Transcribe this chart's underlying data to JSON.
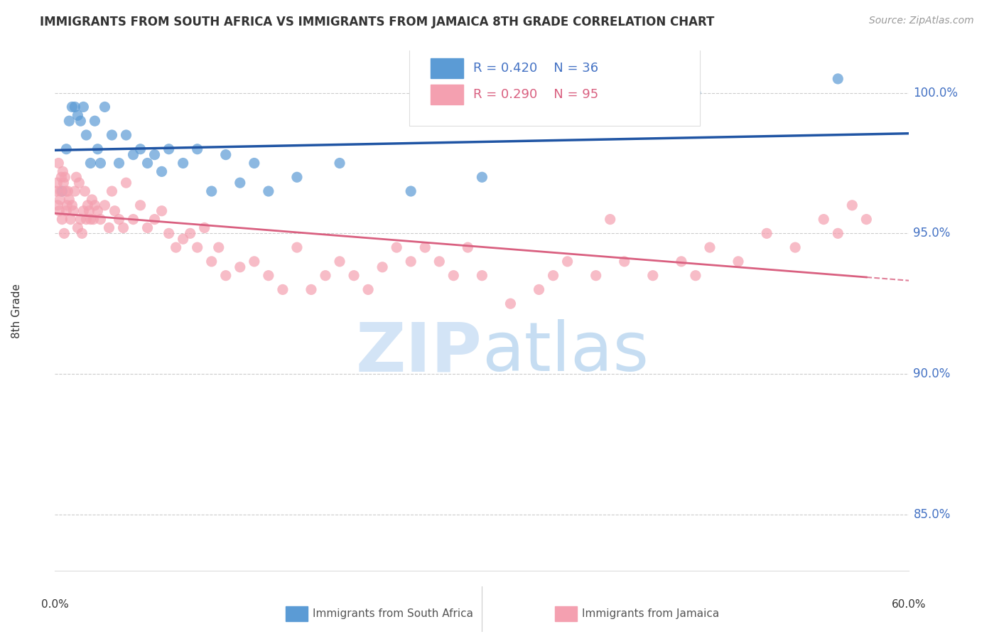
{
  "title": "IMMIGRANTS FROM SOUTH AFRICA VS IMMIGRANTS FROM JAMAICA 8TH GRADE CORRELATION CHART",
  "source": "Source: ZipAtlas.com",
  "ylabel": "8th Grade",
  "y_ticks": [
    85.0,
    90.0,
    95.0,
    100.0
  ],
  "x_range": [
    0.0,
    60.0
  ],
  "y_range": [
    83.0,
    101.5
  ],
  "legend_blue_r": "R = 0.420",
  "legend_blue_n": "N = 36",
  "legend_pink_r": "R = 0.290",
  "legend_pink_n": "N = 95",
  "blue_color": "#5b9bd5",
  "pink_color": "#f4a0b0",
  "blue_line_color": "#2055a4",
  "pink_line_color": "#d96080",
  "background_color": "#ffffff",
  "blue_scatter_x": [
    0.5,
    0.8,
    1.0,
    1.2,
    1.4,
    1.6,
    1.8,
    2.0,
    2.2,
    2.5,
    2.8,
    3.0,
    3.2,
    3.5,
    4.0,
    4.5,
    5.0,
    5.5,
    6.0,
    6.5,
    7.0,
    7.5,
    8.0,
    9.0,
    10.0,
    11.0,
    12.0,
    13.0,
    14.0,
    15.0,
    17.0,
    20.0,
    25.0,
    30.0,
    45.0,
    55.0
  ],
  "blue_scatter_y": [
    96.5,
    98.0,
    99.0,
    99.5,
    99.5,
    99.2,
    99.0,
    99.5,
    98.5,
    97.5,
    99.0,
    98.0,
    97.5,
    99.5,
    98.5,
    97.5,
    98.5,
    97.8,
    98.0,
    97.5,
    97.8,
    97.2,
    98.0,
    97.5,
    98.0,
    96.5,
    97.8,
    96.8,
    97.5,
    96.5,
    97.0,
    97.5,
    96.5,
    97.0,
    100.0,
    100.5
  ],
  "pink_scatter_x": [
    0.1,
    0.15,
    0.2,
    0.25,
    0.3,
    0.35,
    0.4,
    0.45,
    0.5,
    0.55,
    0.6,
    0.65,
    0.7,
    0.75,
    0.8,
    0.85,
    0.9,
    1.0,
    1.1,
    1.2,
    1.3,
    1.4,
    1.5,
    1.6,
    1.7,
    1.8,
    1.9,
    2.0,
    2.1,
    2.2,
    2.3,
    2.4,
    2.5,
    2.6,
    2.7,
    2.8,
    3.0,
    3.2,
    3.5,
    3.8,
    4.0,
    4.2,
    4.5,
    4.8,
    5.0,
    5.5,
    6.0,
    6.5,
    7.0,
    7.5,
    8.0,
    8.5,
    9.0,
    9.5,
    10.0,
    10.5,
    11.0,
    11.5,
    12.0,
    13.0,
    14.0,
    15.0,
    16.0,
    17.0,
    18.0,
    19.0,
    20.0,
    21.0,
    22.0,
    23.0,
    24.0,
    25.0,
    26.0,
    27.0,
    28.0,
    29.0,
    30.0,
    32.0,
    34.0,
    35.0,
    36.0,
    38.0,
    39.0,
    40.0,
    42.0,
    44.0,
    45.0,
    46.0,
    48.0,
    50.0,
    52.0,
    54.0,
    55.0,
    56.0,
    57.0
  ],
  "pink_scatter_y": [
    96.5,
    96.8,
    96.0,
    97.5,
    95.8,
    96.2,
    96.5,
    97.0,
    95.5,
    97.2,
    96.8,
    95.0,
    97.0,
    96.5,
    95.8,
    96.0,
    96.5,
    96.2,
    95.5,
    96.0,
    95.8,
    96.5,
    97.0,
    95.2,
    96.8,
    95.5,
    95.0,
    95.8,
    96.5,
    95.5,
    96.0,
    95.8,
    95.5,
    96.2,
    95.5,
    96.0,
    95.8,
    95.5,
    96.0,
    95.2,
    96.5,
    95.8,
    95.5,
    95.2,
    96.8,
    95.5,
    96.0,
    95.2,
    95.5,
    95.8,
    95.0,
    94.5,
    94.8,
    95.0,
    94.5,
    95.2,
    94.0,
    94.5,
    93.5,
    93.8,
    94.0,
    93.5,
    93.0,
    94.5,
    93.0,
    93.5,
    94.0,
    93.5,
    93.0,
    93.8,
    94.5,
    94.0,
    94.5,
    94.0,
    93.5,
    94.5,
    93.5,
    92.5,
    93.0,
    93.5,
    94.0,
    93.5,
    95.5,
    94.0,
    93.5,
    94.0,
    93.5,
    94.5,
    94.0,
    95.0,
    94.5,
    95.5,
    95.0,
    96.0,
    95.5
  ]
}
